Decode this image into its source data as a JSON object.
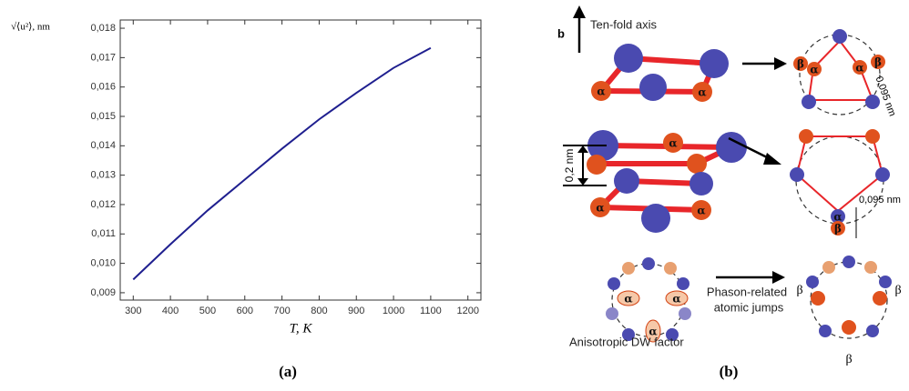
{
  "chart_data": {
    "type": "line",
    "y_label": "√⟨u²⟩, nm",
    "x_label": "T, K",
    "caption": "(a)",
    "x": [
      300,
      400,
      500,
      600,
      700,
      800,
      900,
      1000,
      1100
    ],
    "series": [
      {
        "color": "#1f1f8f",
        "values": [
          0.00945,
          0.01065,
          0.0118,
          0.01285,
          0.0139,
          0.0149,
          0.0158,
          0.01665,
          0.01733
        ]
      }
    ],
    "xlim": [
      265,
      1235
    ],
    "ylim": [
      0.00875,
      0.01828
    ],
    "xticks": [
      300,
      400,
      500,
      600,
      700,
      800,
      900,
      1000,
      1100,
      1200
    ],
    "yticks": [
      {
        "value": 0.009,
        "label": "0,009"
      },
      {
        "value": 0.01,
        "label": "0,010"
      },
      {
        "value": 0.011,
        "label": "0,011"
      },
      {
        "value": 0.012,
        "label": "0,012"
      },
      {
        "value": 0.013,
        "label": "0,013"
      },
      {
        "value": 0.014,
        "label": "0,014"
      },
      {
        "value": 0.015,
        "label": "0,015"
      },
      {
        "value": 0.016,
        "label": "0,016"
      },
      {
        "value": 0.017,
        "label": "0,017"
      },
      {
        "value": 0.018,
        "label": "0,018"
      }
    ],
    "grid": false
  },
  "diagram": {
    "panel_label": "b",
    "axis_label": "Ten-fold axis",
    "spacing_label": "0,2 nm",
    "distance_labels": [
      "0,095 nm",
      "0,095 nm"
    ],
    "greek_labels": [
      "α",
      "α",
      "α",
      "α",
      "α",
      "β",
      "α",
      "α",
      "β",
      "α",
      "β",
      "α",
      "α",
      "α",
      "β",
      "β",
      "β"
    ],
    "jump_label": [
      "Phason-related",
      "atomic jumps"
    ],
    "dw_label": "Anisotropic DW factor",
    "caption": "(b)"
  }
}
